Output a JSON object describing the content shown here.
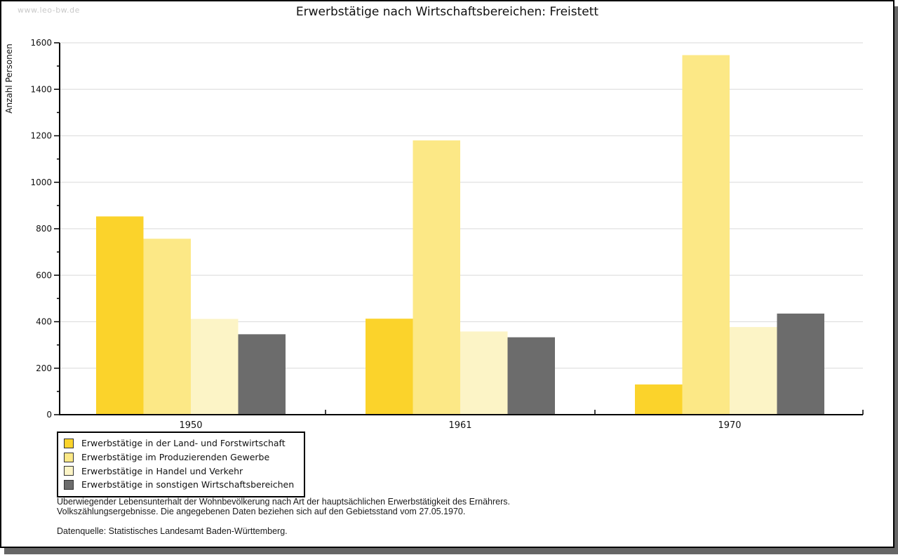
{
  "watermark": "www.leo-bw.de",
  "title": "Erwerbstätige nach Wirtschaftsbereichen: Freistett",
  "chart_data": {
    "type": "bar",
    "title": "Erwerbstätige nach Wirtschaftsbereichen: Freistett",
    "categories": [
      "1950",
      "1961",
      "1970"
    ],
    "series": [
      {
        "name": "Erwerbstätige in der Land- und Forstwirtschaft",
        "color": "#FBD32B",
        "values": [
          853,
          413,
          130
        ]
      },
      {
        "name": "Erwerbstätige im Produzierenden Gewerbe",
        "color": "#FCE886",
        "values": [
          757,
          1180,
          1547
        ]
      },
      {
        "name": "Erwerbstätige in Handel und Verkehr",
        "color": "#FCF4C6",
        "values": [
          412,
          358,
          377
        ]
      },
      {
        "name": "Erwerbstätige in sonstigen Wirtschaftsbereichen",
        "color": "#6C6C6C",
        "values": [
          346,
          333,
          435
        ]
      }
    ],
    "xlabel": "",
    "ylabel": "Anzahl Personen",
    "ylim": [
      0,
      1600
    ],
    "yticks": [
      0,
      200,
      400,
      600,
      800,
      1000,
      1200,
      1400,
      1600
    ],
    "ytick_minor_step": 100,
    "grid": true,
    "gridline_color": "#e0e0e0",
    "legend_position": "bottom-left"
  },
  "footnotes": {
    "line1": "Überwiegender Lebensunterhalt der Wohnbevölkerung nach Art der hauptsächlichen Erwerbstätigkeit des Ernährers.",
    "line2": "Volkszählungsergebnisse. Die angegebenen Daten beziehen sich auf den Gebietsstand vom 27.05.1970.",
    "source": "Datenquelle: Statistisches Landesamt Baden-Württemberg."
  }
}
